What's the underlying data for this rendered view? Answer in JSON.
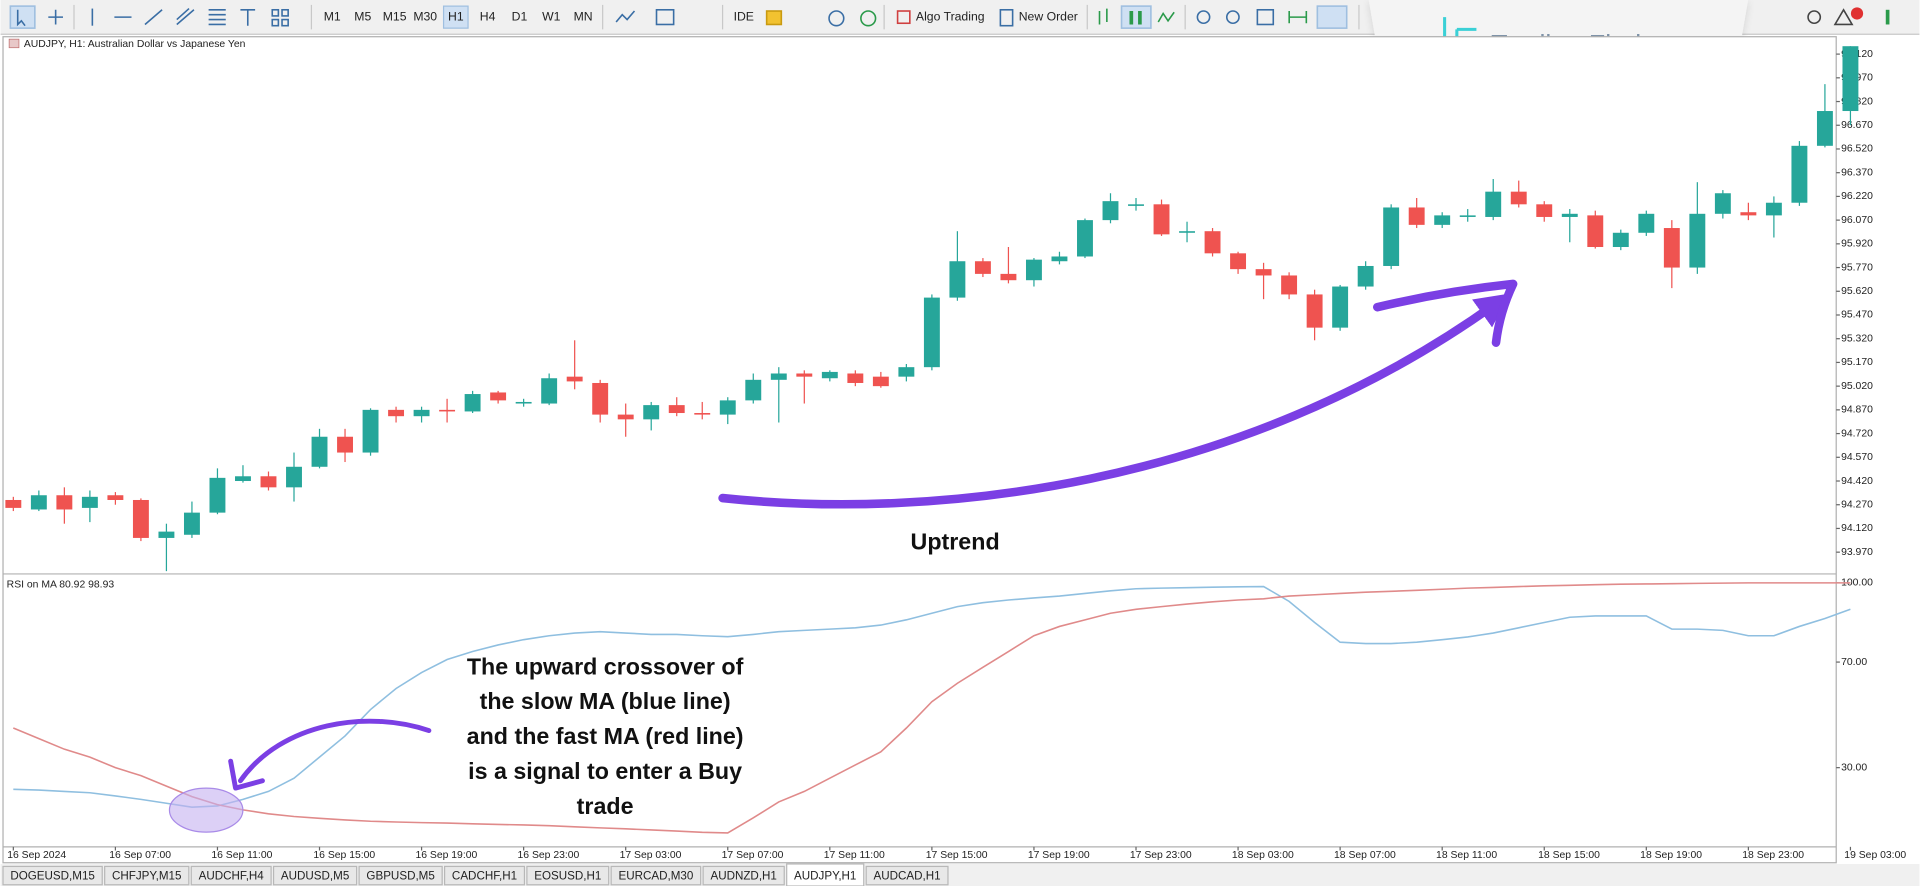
{
  "toolbar": {
    "timeframes": [
      "M1",
      "M5",
      "M15",
      "M30",
      "H1",
      "H4",
      "D1",
      "W1",
      "MN"
    ],
    "active_timeframe": 4,
    "ide": "IDE",
    "algo_trading": "Algo Trading",
    "new_order": "New Order"
  },
  "logo": "Trading Finder",
  "tabs": [
    "DOGEUSD,M15",
    "CHFJPY,M15",
    "AUDCHF,H4",
    "AUDUSD,M5",
    "GBPUSD,M5",
    "CADCHF,H1",
    "EOSUSD,H1",
    "EURCAD,M30",
    "AUDNZD,H1",
    "AUDJPY,H1",
    "AUDCAD,H1"
  ],
  "active_tab": 9,
  "chart_data": [
    {
      "type": "candlestick",
      "title": "AUDJPY, H1: Australian Dollar vs Japanese Yen",
      "categories": [
        "16 Sep 2024",
        null,
        null,
        null,
        "16 Sep 07:00",
        null,
        null,
        null,
        "16 Sep 11:00",
        null,
        null,
        null,
        "16 Sep 15:00",
        null,
        null,
        null,
        "16 Sep 19:00",
        null,
        null,
        null,
        "16 Sep 23:00",
        null,
        null,
        null,
        "17 Sep 03:00",
        null,
        null,
        null,
        "17 Sep 07:00",
        null,
        null,
        null,
        "17 Sep 11:00",
        null,
        null,
        null,
        "17 Sep 15:00",
        null,
        null,
        null,
        "17 Sep 19:00",
        null,
        null,
        null,
        "17 Sep 23:00",
        null,
        null,
        null,
        "18 Sep 03:00",
        null,
        null,
        null,
        "18 Sep 07:00",
        null,
        null,
        null,
        "18 Sep 11:00",
        null,
        null,
        null,
        "18 Sep 15:00",
        null,
        null,
        null,
        "18 Sep 19:00",
        null,
        null,
        null,
        "18 Sep 23:00",
        null,
        null,
        null,
        "19 Sep 03:00"
      ],
      "open": [
        94.3,
        94.24,
        94.33,
        94.25,
        94.33,
        94.3,
        94.06,
        94.08,
        94.22,
        94.42,
        94.45,
        94.38,
        94.51,
        94.7,
        94.6,
        94.87,
        94.83,
        94.87,
        94.86,
        94.98,
        94.91,
        94.91,
        95.08,
        95.04,
        94.84,
        94.81,
        94.9,
        94.85,
        94.84,
        94.93,
        95.06,
        95.1,
        95.07,
        95.1,
        95.08,
        95.08,
        95.14,
        95.58,
        95.81,
        95.73,
        95.69,
        95.81,
        95.84,
        96.07,
        96.16,
        96.17,
        95.99,
        96.0,
        95.86,
        95.76,
        95.72,
        95.6,
        95.39,
        95.65,
        95.78,
        96.15,
        96.04,
        96.09,
        96.09,
        96.25,
        96.17,
        96.09,
        96.1,
        95.9,
        95.99,
        96.02,
        95.77,
        96.11,
        96.12,
        96.1,
        96.18,
        96.54,
        96.76
      ],
      "high": [
        94.32,
        94.36,
        94.38,
        94.36,
        94.35,
        94.31,
        94.15,
        94.29,
        94.5,
        94.52,
        94.48,
        94.6,
        94.75,
        94.75,
        94.88,
        94.89,
        94.89,
        94.94,
        94.99,
        94.99,
        94.94,
        95.1,
        95.31,
        95.06,
        94.91,
        94.92,
        94.95,
        94.92,
        94.95,
        95.1,
        95.14,
        95.12,
        95.12,
        95.12,
        95.11,
        95.16,
        95.6,
        96.0,
        95.83,
        95.9,
        95.83,
        95.87,
        96.08,
        96.24,
        96.21,
        96.2,
        96.06,
        96.02,
        95.87,
        95.8,
        95.74,
        95.63,
        95.66,
        95.81,
        96.17,
        96.21,
        96.12,
        96.14,
        96.33,
        96.32,
        96.19,
        96.14,
        96.13,
        96.01,
        96.13,
        96.07,
        96.31,
        96.26,
        96.18,
        96.22,
        96.57,
        96.93,
        97.17
      ],
      "low": [
        94.23,
        94.23,
        94.15,
        94.16,
        94.27,
        94.04,
        93.85,
        94.06,
        94.21,
        94.41,
        94.36,
        94.29,
        94.5,
        94.54,
        94.58,
        94.79,
        94.79,
        94.79,
        94.85,
        94.91,
        94.89,
        94.9,
        95.0,
        94.79,
        94.7,
        94.74,
        94.83,
        94.81,
        94.78,
        94.91,
        94.79,
        94.91,
        95.05,
        95.02,
        95.01,
        95.05,
        95.12,
        95.56,
        95.71,
        95.67,
        95.65,
        95.79,
        95.83,
        96.05,
        96.13,
        95.97,
        95.93,
        95.84,
        95.73,
        95.57,
        95.57,
        95.31,
        95.37,
        95.63,
        95.76,
        96.02,
        96.02,
        96.06,
        96.07,
        96.15,
        96.06,
        95.93,
        95.89,
        95.88,
        95.97,
        95.64,
        95.73,
        96.08,
        96.07,
        95.96,
        96.16,
        96.53,
        96.67
      ],
      "close": [
        94.25,
        94.33,
        94.24,
        94.32,
        94.3,
        94.06,
        94.1,
        94.22,
        94.44,
        94.45,
        94.38,
        94.51,
        94.7,
        94.6,
        94.87,
        94.83,
        94.87,
        94.86,
        94.97,
        94.93,
        94.92,
        95.07,
        95.05,
        94.84,
        94.81,
        94.9,
        94.85,
        94.84,
        94.93,
        95.06,
        95.1,
        95.08,
        95.11,
        95.04,
        95.02,
        95.14,
        95.58,
        95.81,
        95.73,
        95.69,
        95.82,
        95.84,
        96.07,
        96.19,
        96.17,
        95.98,
        96.0,
        95.86,
        95.76,
        95.72,
        95.6,
        95.39,
        95.65,
        95.78,
        96.15,
        96.04,
        96.1,
        96.1,
        96.25,
        96.17,
        96.09,
        96.11,
        95.9,
        95.99,
        96.11,
        95.77,
        96.11,
        96.24,
        96.1,
        96.18,
        96.54,
        96.76,
        97.17
      ],
      "up_color": "#26a69a",
      "down_color": "#ef5350",
      "ylim": [
        93.84,
        97.23
      ],
      "yticks": [
        {
          "value": 97.12,
          "label": "97.120"
        },
        {
          "value": 96.97,
          "label": "96.970"
        },
        {
          "value": 96.82,
          "label": "96.820"
        },
        {
          "value": 96.67,
          "label": "96.670"
        },
        {
          "value": 96.52,
          "label": "96.520"
        },
        {
          "value": 96.37,
          "label": "96.370"
        },
        {
          "value": 96.22,
          "label": "96.220"
        },
        {
          "value": 96.07,
          "label": "96.070"
        },
        {
          "value": 95.92,
          "label": "95.920"
        },
        {
          "value": 95.77,
          "label": "95.770"
        },
        {
          "value": 95.62,
          "label": "95.620"
        },
        {
          "value": 95.47,
          "label": "95.470"
        },
        {
          "value": 95.32,
          "label": "95.320"
        },
        {
          "value": 95.17,
          "label": "95.170"
        },
        {
          "value": 95.02,
          "label": "95.020"
        },
        {
          "value": 94.87,
          "label": "94.870"
        },
        {
          "value": 94.72,
          "label": "94.720"
        },
        {
          "value": 94.57,
          "label": "94.570"
        },
        {
          "value": 94.42,
          "label": "94.420"
        },
        {
          "value": 94.27,
          "label": "94.270"
        },
        {
          "value": 94.12,
          "label": "94.120"
        },
        {
          "value": 93.97,
          "label": "93.970"
        }
      ],
      "annotation": "Uptrend"
    },
    {
      "type": "line",
      "title": "RSI on MA 80.92 98.93",
      "series": [
        {
          "color": "#8fbfe0",
          "values": [
            21.8,
            21.5,
            21,
            20.5,
            19.3,
            18,
            16.5,
            15,
            15.5,
            18,
            21,
            26,
            34,
            42,
            52,
            60,
            66,
            71,
            74,
            76.5,
            78.5,
            80,
            81,
            81.5,
            81,
            80.5,
            80.5,
            80,
            79.6,
            80.5,
            81.5,
            82,
            82.5,
            83,
            84,
            86,
            88.5,
            91,
            92.5,
            93.5,
            94.3,
            95,
            96,
            97,
            97.8,
            98,
            98.2,
            98.4,
            98.5,
            98.6,
            93,
            85,
            77.5,
            77,
            77,
            77.5,
            78.5,
            79.5,
            81,
            83,
            85,
            87,
            87.5,
            87.5,
            87.5,
            82.5,
            82.5,
            82,
            80,
            80,
            83.5,
            86.5,
            90
          ]
        },
        {
          "color": "#e08a8a",
          "values": [
            45,
            41,
            37,
            34,
            30,
            27,
            23,
            19,
            16,
            14,
            12.5,
            11.5,
            10.8,
            10.2,
            9.7,
            9.4,
            9.2,
            9,
            8.7,
            8.5,
            8.3,
            8,
            7.6,
            7.2,
            6.8,
            6.4,
            6,
            5.5,
            5.3,
            11,
            17,
            21,
            26,
            31,
            36,
            45,
            55,
            62,
            68,
            74,
            80,
            83.5,
            86,
            88.5,
            90,
            91,
            92,
            92.8,
            93.5,
            94,
            95,
            95.5,
            96,
            96.5,
            96.8,
            97.2,
            97.6,
            98,
            98.3,
            98.6,
            98.9,
            99.1,
            99.3,
            99.5,
            99.6,
            99.7,
            99.8,
            99.9,
            100,
            100,
            100,
            100,
            100
          ]
        }
      ],
      "ylim": [
        0,
        102
      ],
      "yticks": [
        {
          "value": 100,
          "label": "100.00"
        },
        {
          "value": 70,
          "label": "70.00"
        },
        {
          "value": 30,
          "label": "30.00"
        }
      ],
      "annotation": {
        "lines": [
          "The upward crossover of",
          "the slow MA (blue line)",
          "and the fast MA (red line)",
          "is a signal to enter a Buy",
          "trade"
        ]
      }
    }
  ]
}
